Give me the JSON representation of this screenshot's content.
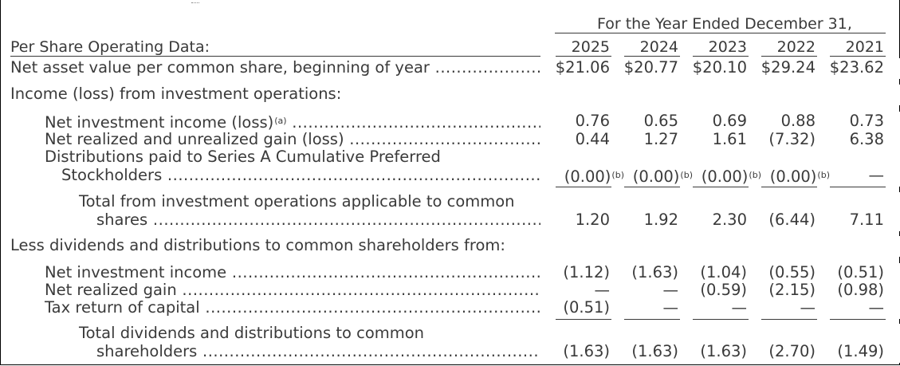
{
  "header": {
    "title": "For the Year Ended December 31,",
    "section_label": "Per Share Operating Data:",
    "years": [
      "2025",
      "2024",
      "2023",
      "2022",
      "2021"
    ]
  },
  "rows": [
    {
      "key": "nav_begin",
      "label": "Net asset value per common share, beginning of year",
      "indent": 0,
      "dots": true,
      "values": [
        "$21.06",
        "$20.77",
        "$20.10",
        "$29.24",
        "$23.62"
      ],
      "footnotes": [
        "",
        "",
        "",
        "",
        ""
      ]
    },
    {
      "key": "income_heading",
      "label": "Income (loss) from investment operations:",
      "indent": 0,
      "dots": false,
      "values": [
        "",
        "",
        "",
        "",
        ""
      ],
      "footnotes": [
        "",
        "",
        "",
        "",
        ""
      ]
    },
    {
      "key": "nii",
      "label": "Net investment income (loss)",
      "label_footnote": "(a)",
      "indent": 1,
      "dots": true,
      "values": [
        "0.76",
        "0.65",
        "0.69",
        "0.88",
        "0.73"
      ],
      "footnotes": [
        "",
        "",
        "",
        "",
        ""
      ]
    },
    {
      "key": "gain",
      "label": "Net realized and unrealized gain (loss)",
      "indent": 1,
      "dots": true,
      "values": [
        "0.44",
        "1.27",
        "1.61",
        "(7.32)",
        "6.38"
      ],
      "footnotes": [
        "",
        "",
        "",
        "",
        ""
      ]
    },
    {
      "key": "pref_line1",
      "label": "Distributions paid to Series A Cumulative Preferred",
      "indent": 1,
      "dots": false,
      "values": [
        "",
        "",
        "",
        "",
        ""
      ],
      "footnotes": [
        "",
        "",
        "",
        "",
        ""
      ]
    },
    {
      "key": "pref_line2",
      "label": "Stockholders",
      "indent": 2,
      "dots": true,
      "values": [
        "(0.00)",
        "(0.00)",
        "(0.00)",
        "(0.00)",
        "—"
      ],
      "footnotes": [
        "(b)",
        "(b)",
        "(b)",
        "(b)",
        ""
      ]
    },
    {
      "key": "total_ops_line1",
      "label": "Total from investment operations applicable to common",
      "indent": 3,
      "dots": false,
      "values": [
        "",
        "",
        "",
        "",
        ""
      ],
      "footnotes": [
        "",
        "",
        "",
        "",
        ""
      ]
    },
    {
      "key": "total_ops_line2",
      "label": "shares",
      "indent": 4,
      "dots": true,
      "values": [
        "1.20",
        "1.92",
        "2.30",
        "(6.44)",
        "7.11"
      ],
      "footnotes": [
        "",
        "",
        "",
        "",
        ""
      ]
    },
    {
      "key": "less_heading",
      "label": "Less dividends and distributions to common shareholders from:",
      "indent": 0,
      "dots": false,
      "values": [
        "",
        "",
        "",
        "",
        ""
      ],
      "footnotes": [
        "",
        "",
        "",
        "",
        ""
      ]
    },
    {
      "key": "div_nii",
      "label": "Net investment income",
      "indent": 1,
      "dots": true,
      "values": [
        "(1.12)",
        "(1.63)",
        "(1.04)",
        "(0.55)",
        "(0.51)"
      ],
      "footnotes": [
        "",
        "",
        "",
        "",
        ""
      ]
    },
    {
      "key": "div_gain",
      "label": "Net realized gain",
      "indent": 1,
      "dots": true,
      "values": [
        "—",
        "—",
        "(0.59)",
        "(2.15)",
        "(0.98)"
      ],
      "footnotes": [
        "",
        "",
        "",
        "",
        ""
      ]
    },
    {
      "key": "div_tax",
      "label": "Tax return of capital",
      "indent": 1,
      "dots": true,
      "values": [
        "(0.51)",
        "—",
        "—",
        "—",
        "—"
      ],
      "footnotes": [
        "",
        "",
        "",
        "",
        ""
      ]
    },
    {
      "key": "total_div_line1",
      "label": "Total dividends and distributions to common",
      "indent": 3,
      "dots": false,
      "values": [
        "",
        "",
        "",
        "",
        ""
      ],
      "footnotes": [
        "",
        "",
        "",
        "",
        ""
      ]
    },
    {
      "key": "total_div_line2",
      "label": "shareholders",
      "indent": 5,
      "dots": true,
      "values": [
        "(1.63)",
        "(1.63)",
        "(1.63)",
        "(2.70)",
        "(1.49)"
      ],
      "footnotes": [
        "",
        "",
        "",
        "",
        ""
      ]
    }
  ]
}
